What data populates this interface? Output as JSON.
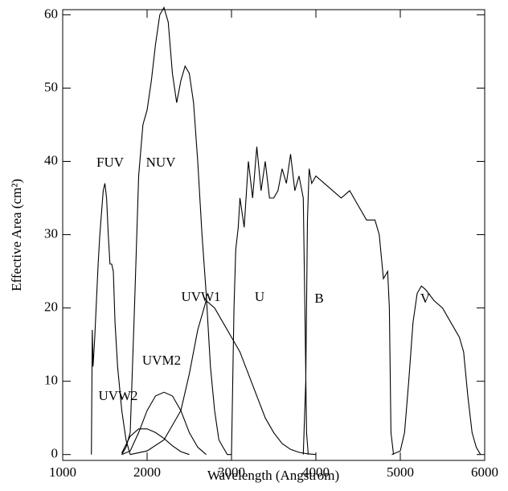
{
  "chart_data": {
    "type": "line",
    "x_label": "Wavelength (Angstrom)",
    "y_label": "Effective Area (cm²)",
    "xlim": [
      1000,
      6000
    ],
    "ylim": [
      -0.8,
      60.7
    ],
    "xticks": [
      1000,
      2000,
      3000,
      4000,
      5000,
      6000
    ],
    "yticks": [
      0,
      10,
      20,
      30,
      40,
      50,
      60
    ],
    "series": [
      {
        "name": "FUV",
        "color": "#000000",
        "x": [
          1340,
          1350,
          1360,
          1380,
          1400,
          1420,
          1440,
          1460,
          1480,
          1500,
          1520,
          1540,
          1560,
          1580,
          1600,
          1620,
          1650,
          1700,
          1750,
          1800
        ],
        "values": [
          0,
          17,
          12,
          16,
          21,
          26,
          30,
          33,
          36,
          37,
          35,
          30,
          26,
          26,
          25,
          18,
          12,
          6,
          2,
          0
        ]
      },
      {
        "name": "NUV",
        "color": "#000000",
        "x": [
          1700,
          1750,
          1800,
          1850,
          1900,
          1950,
          2000,
          2050,
          2100,
          2150,
          2200,
          2250,
          2300,
          2350,
          2400,
          2450,
          2500,
          2550,
          2600,
          2650,
          2700,
          2750,
          2800,
          2850,
          2900,
          2950,
          3000
        ],
        "values": [
          0,
          1,
          3,
          20,
          38,
          45,
          47,
          51,
          56,
          60,
          61,
          59,
          52,
          48,
          51,
          53,
          52,
          48,
          40,
          30,
          22,
          12,
          6,
          2,
          1,
          0,
          0
        ]
      },
      {
        "name": "UVW2",
        "color": "#000000",
        "x": [
          1700,
          1800,
          1900,
          2000,
          2100,
          2200,
          2300,
          2400,
          2500
        ],
        "values": [
          0.2,
          2.5,
          3.5,
          3.5,
          3,
          2.2,
          1.2,
          0.4,
          0
        ]
      },
      {
        "name": "UVM2",
        "color": "#000000",
        "x": [
          1700,
          1800,
          1900,
          2000,
          2100,
          2200,
          2300,
          2400,
          2500,
          2600,
          2700
        ],
        "values": [
          0,
          0.5,
          3,
          6,
          8,
          8.5,
          8,
          6,
          3,
          1,
          0
        ]
      },
      {
        "name": "UVW1",
        "color": "#000000",
        "x": [
          1800,
          2000,
          2200,
          2400,
          2500,
          2600,
          2700,
          2800,
          2900,
          3000,
          3100,
          3200,
          3300,
          3400,
          3500,
          3600,
          3700,
          3800,
          3900,
          4000
        ],
        "values": [
          0,
          0.5,
          2,
          6,
          11,
          17,
          21,
          20,
          18,
          16,
          14,
          11,
          8,
          5,
          3,
          1.5,
          0.7,
          0.3,
          0.1,
          0
        ]
      },
      {
        "name": "U",
        "color": "#000000",
        "x": [
          3000,
          3030,
          3050,
          3080,
          3100,
          3150,
          3200,
          3250,
          3300,
          3350,
          3400,
          3450,
          3500,
          3550,
          3600,
          3650,
          3700,
          3750,
          3800,
          3850,
          3870,
          3890,
          3910
        ],
        "values": [
          0,
          20,
          28,
          31,
          35,
          31,
          40,
          35,
          42,
          36,
          40,
          35,
          35,
          36,
          39,
          37,
          41,
          36,
          38,
          35,
          20,
          3,
          0
        ]
      },
      {
        "name": "B",
        "color": "#000000",
        "x": [
          3850,
          3880,
          3900,
          3920,
          3950,
          4000,
          4100,
          4200,
          4300,
          4400,
          4500,
          4600,
          4650,
          4700,
          4750,
          4800,
          4850,
          4870,
          4890,
          4920
        ],
        "values": [
          0,
          10,
          32,
          39,
          37,
          38,
          37,
          36,
          35,
          36,
          34,
          32,
          32,
          32,
          30,
          24,
          25,
          20,
          3,
          0
        ]
      },
      {
        "name": "V",
        "color": "#000000",
        "x": [
          4900,
          5000,
          5050,
          5100,
          5150,
          5200,
          5250,
          5300,
          5400,
          5500,
          5600,
          5700,
          5750,
          5800,
          5850,
          5900,
          5950
        ],
        "values": [
          0,
          0.5,
          3,
          10,
          18,
          22,
          23,
          22.5,
          21,
          20,
          18,
          16,
          14,
          8,
          3,
          1,
          0
        ]
      }
    ]
  }
}
